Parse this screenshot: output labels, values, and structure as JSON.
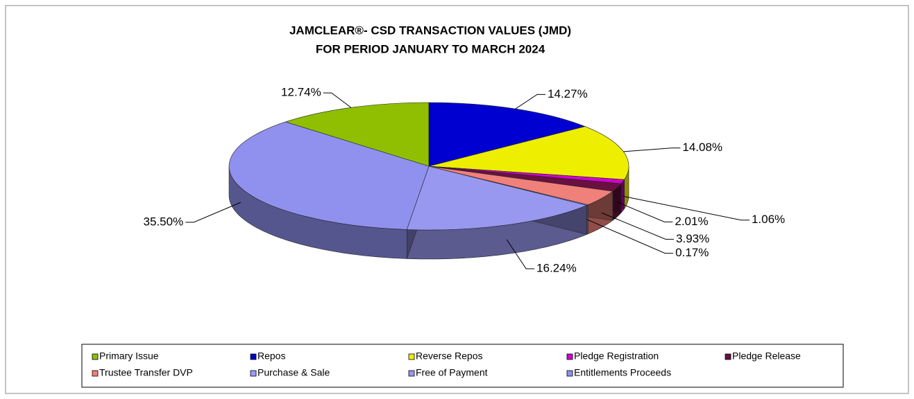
{
  "chart_data": {
    "type": "pie3d",
    "title": "JAMCLEAR®- CSD TRANSACTION VALUES (JMD)",
    "subtitle": "FOR PERIOD JANUARY TO MARCH 2024",
    "categories": [
      "Primary Issue",
      "Repos",
      "Reverse Repos",
      "Pledge Registration",
      "Pledge Release",
      "Trustee Transfer DVP",
      "Purchase & Sale",
      "Free of Payment",
      "Entitlements Proceeds"
    ],
    "values": [
      12.74,
      14.27,
      14.08,
      1.06,
      2.01,
      3.93,
      0.17,
      16.24,
      35.5
    ],
    "value_labels": [
      "12.74%",
      "14.27%",
      "14.08%",
      "1.06%",
      "2.01%",
      "3.93%",
      "0.17%",
      "16.24%",
      "35.50%"
    ],
    "colors": [
      "#8fbf00",
      "#0000d0",
      "#eeee00",
      "#d000d0",
      "#6a1040",
      "#f0807a",
      "#9c9cff",
      "#9898f0",
      "#9090ee"
    ],
    "legend": "bottom"
  }
}
